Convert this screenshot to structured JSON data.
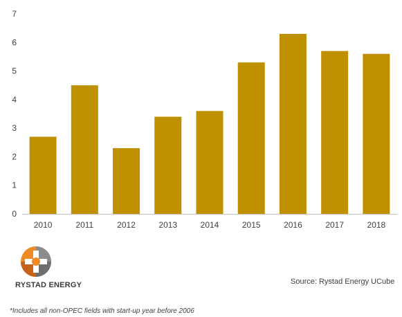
{
  "chart_data": {
    "type": "bar",
    "categories": [
      "2010",
      "2011",
      "2012",
      "2013",
      "2014",
      "2015",
      "2016",
      "2017",
      "2018"
    ],
    "values": [
      2.7,
      4.5,
      2.3,
      3.4,
      3.6,
      5.3,
      6.3,
      5.7,
      5.6
    ],
    "yticks": [
      "0",
      "1",
      "2",
      "3",
      "4",
      "5",
      "6",
      "7"
    ],
    "ylim": [
      0,
      7
    ],
    "grid": false,
    "bar_color": "#bf9000",
    "axis_color": "#bfbfbf"
  },
  "logo": {
    "text": "RYSTAD ENERGY",
    "colors": [
      "#f08a24",
      "#c8621a",
      "#8c8c8c",
      "#6e6e6e"
    ]
  },
  "source": "Source: Rystad Energy UCube",
  "footnote": "*Includes all non-OPEC fields with start-up year before 2006"
}
